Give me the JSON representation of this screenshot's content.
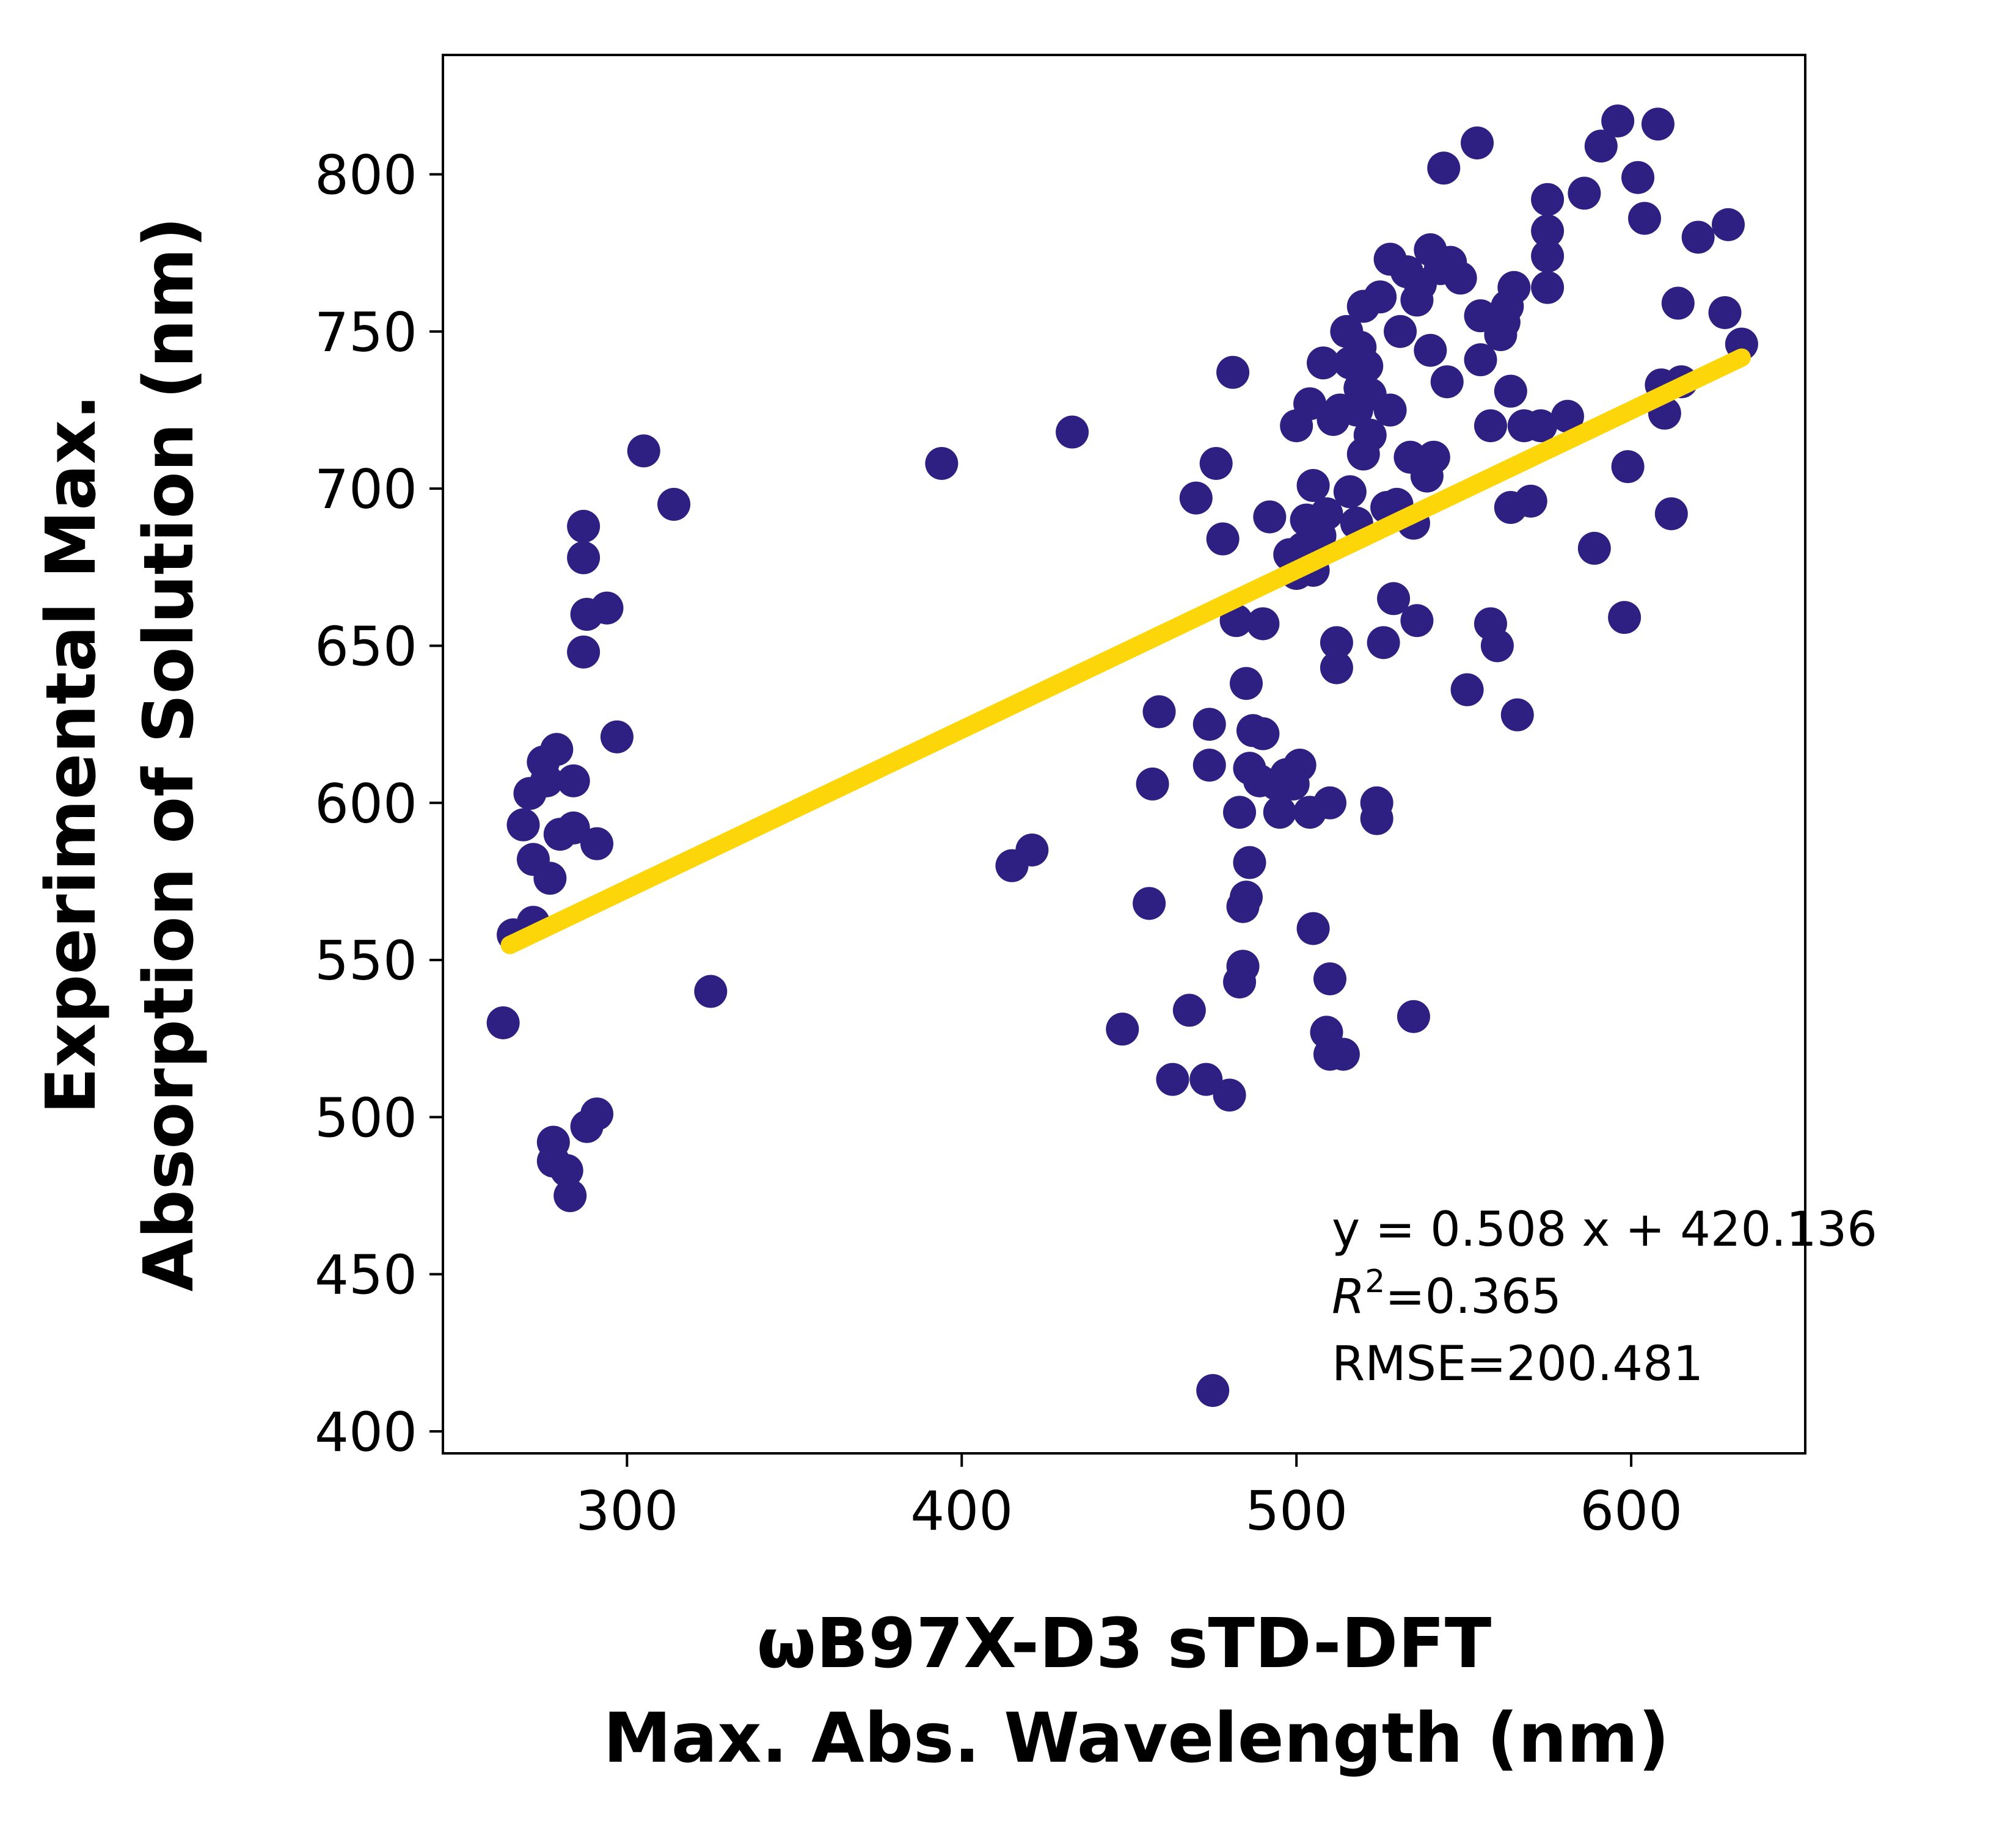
{
  "chart_data": {
    "type": "scatter",
    "xlabel_lines": [
      "ωB97X-D3 sTD-DFT",
      "Max. Abs. Wavelength (nm)"
    ],
    "ylabel_lines": [
      "Experimental Max.",
      "Absorption of Solution (nm)"
    ],
    "xlim": [
      245,
      652
    ],
    "ylim": [
      393,
      838
    ],
    "xticks": [
      300,
      400,
      500,
      600
    ],
    "yticks": [
      400,
      450,
      500,
      550,
      600,
      650,
      700,
      750,
      800
    ],
    "grid": false,
    "colors": {
      "points": "#2e1f82",
      "fit_line": "#fdd60a",
      "axes": "#000000",
      "background": "#ffffff"
    },
    "fit": {
      "slope": 0.508,
      "intercept": 420.136,
      "x_range": [
        265,
        633
      ]
    },
    "annotation_lines": {
      "equation": "y = 0.508 x + 420.136",
      "r2_symbol": "R",
      "r2_sup": "2",
      "r2_value": "=0.365",
      "rmse": "RMSE=200.481"
    },
    "points": [
      [
        263,
        530
      ],
      [
        266,
        558
      ],
      [
        269,
        593
      ],
      [
        271,
        603
      ],
      [
        272,
        562
      ],
      [
        272,
        582
      ],
      [
        275,
        613
      ],
      [
        276,
        607
      ],
      [
        277,
        576
      ],
      [
        278,
        486
      ],
      [
        278,
        492
      ],
      [
        279,
        617
      ],
      [
        280,
        590
      ],
      [
        282,
        483
      ],
      [
        283,
        475
      ],
      [
        284,
        607
      ],
      [
        284,
        592
      ],
      [
        287,
        688
      ],
      [
        287,
        678
      ],
      [
        287,
        648
      ],
      [
        288,
        497
      ],
      [
        288,
        660
      ],
      [
        291,
        587
      ],
      [
        291,
        501
      ],
      [
        294,
        662
      ],
      [
        297,
        621
      ],
      [
        305,
        712
      ],
      [
        314,
        695
      ],
      [
        325,
        540
      ],
      [
        394,
        708
      ],
      [
        415,
        580
      ],
      [
        421,
        585
      ],
      [
        433,
        718
      ],
      [
        448,
        528
      ],
      [
        456,
        568
      ],
      [
        457,
        606
      ],
      [
        459,
        629
      ],
      [
        463,
        512
      ],
      [
        468,
        534
      ],
      [
        470,
        697
      ],
      [
        473,
        512
      ],
      [
        474,
        612
      ],
      [
        474,
        625
      ],
      [
        475,
        413
      ],
      [
        476,
        708
      ],
      [
        478,
        684
      ],
      [
        480,
        507
      ],
      [
        481,
        737
      ],
      [
        482,
        658
      ],
      [
        483,
        543
      ],
      [
        483,
        597
      ],
      [
        484,
        548
      ],
      [
        484,
        567
      ],
      [
        485,
        570
      ],
      [
        485,
        638
      ],
      [
        486,
        581
      ],
      [
        486,
        611
      ],
      [
        487,
        623
      ],
      [
        489,
        607
      ],
      [
        490,
        622
      ],
      [
        490,
        657
      ],
      [
        492,
        691
      ],
      [
        494,
        606
      ],
      [
        495,
        597
      ],
      [
        497,
        609
      ],
      [
        498,
        679
      ],
      [
        499,
        606
      ],
      [
        500,
        673
      ],
      [
        500,
        720
      ],
      [
        501,
        612
      ],
      [
        502,
        681
      ],
      [
        503,
        690
      ],
      [
        504,
        727
      ],
      [
        504,
        597
      ],
      [
        505,
        674
      ],
      [
        505,
        701
      ],
      [
        505,
        560
      ],
      [
        507,
        685
      ],
      [
        508,
        740
      ],
      [
        509,
        692
      ],
      [
        509,
        527
      ],
      [
        510,
        600
      ],
      [
        510,
        520
      ],
      [
        510,
        544
      ],
      [
        511,
        722
      ],
      [
        512,
        651
      ],
      [
        512,
        643
      ],
      [
        513,
        725
      ],
      [
        514,
        520
      ],
      [
        515,
        750
      ],
      [
        516,
        699
      ],
      [
        516,
        740
      ],
      [
        518,
        689
      ],
      [
        518,
        725
      ],
      [
        519,
        732
      ],
      [
        519,
        745
      ],
      [
        520,
        711
      ],
      [
        520,
        758
      ],
      [
        521,
        739
      ],
      [
        522,
        730
      ],
      [
        522,
        717
      ],
      [
        524,
        600
      ],
      [
        524,
        595
      ],
      [
        525,
        761
      ],
      [
        526,
        651
      ],
      [
        527,
        694
      ],
      [
        528,
        773
      ],
      [
        528,
        725
      ],
      [
        529,
        665
      ],
      [
        530,
        695
      ],
      [
        531,
        750
      ],
      [
        533,
        769
      ],
      [
        534,
        710
      ],
      [
        535,
        689
      ],
      [
        535,
        532
      ],
      [
        536,
        760
      ],
      [
        536,
        658
      ],
      [
        537,
        765
      ],
      [
        538,
        708
      ],
      [
        539,
        704
      ],
      [
        540,
        776
      ],
      [
        540,
        744
      ],
      [
        541,
        710
      ],
      [
        543,
        770
      ],
      [
        544,
        802
      ],
      [
        545,
        734
      ],
      [
        546,
        772
      ],
      [
        549,
        767
      ],
      [
        551,
        636
      ],
      [
        554,
        810
      ],
      [
        555,
        755
      ],
      [
        555,
        741
      ],
      [
        558,
        720
      ],
      [
        558,
        657
      ],
      [
        560,
        650
      ],
      [
        561,
        749
      ],
      [
        562,
        753
      ],
      [
        563,
        758
      ],
      [
        564,
        731
      ],
      [
        564,
        694
      ],
      [
        565,
        764
      ],
      [
        566,
        628
      ],
      [
        568,
        720
      ],
      [
        570,
        696
      ],
      [
        573,
        720
      ],
      [
        575,
        792
      ],
      [
        575,
        774
      ],
      [
        575,
        782
      ],
      [
        575,
        764
      ],
      [
        581,
        723
      ],
      [
        586,
        794
      ],
      [
        589,
        681
      ],
      [
        591,
        809
      ],
      [
        596,
        817
      ],
      [
        598,
        659
      ],
      [
        599,
        707
      ],
      [
        602,
        799
      ],
      [
        604,
        786
      ],
      [
        608,
        816
      ],
      [
        609,
        733
      ],
      [
        610,
        724
      ],
      [
        612,
        692
      ],
      [
        614,
        759
      ],
      [
        615,
        734
      ],
      [
        620,
        780
      ],
      [
        628,
        756
      ],
      [
        629,
        784
      ],
      [
        633,
        746
      ]
    ]
  }
}
